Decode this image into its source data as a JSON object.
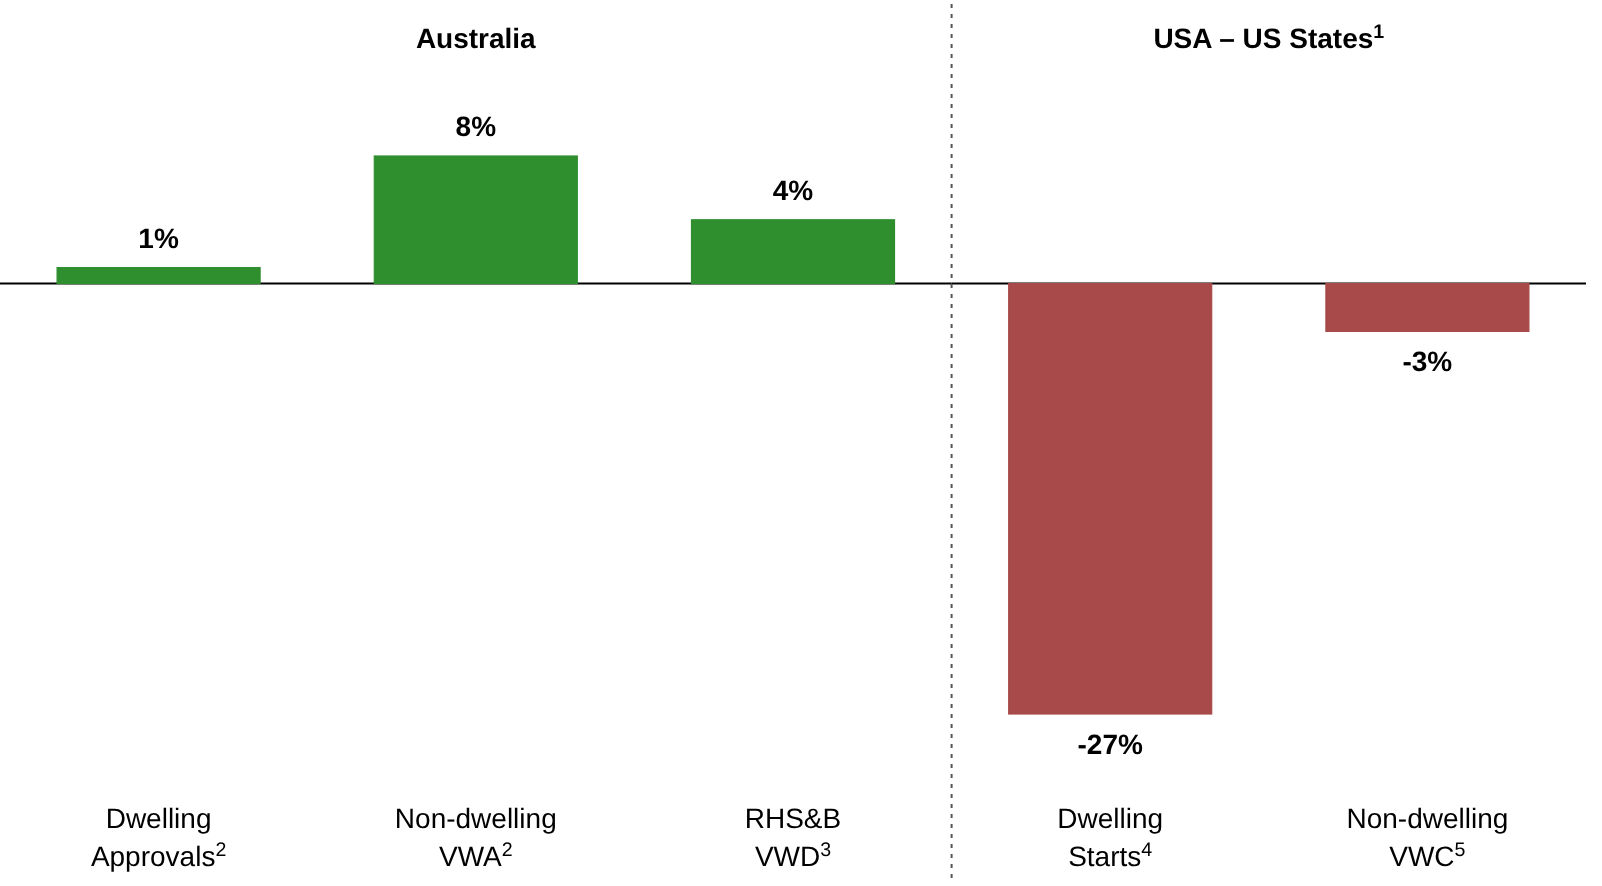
{
  "chart_data": [
    {
      "type": "bar",
      "title": "Australia",
      "categories": [
        "Dwelling Approvals$^{2}$",
        "Non-dwelling VWA$^{2}$",
        "RHS&B VWD$^{3}$"
      ],
      "values": [
        1,
        8,
        4
      ],
      "colors": [
        "#2f8f2f",
        "#2f8f2f",
        "#2f8f2f"
      ],
      "value_labels": [
        "1%",
        "8%",
        "4%"
      ],
      "tick_labels": "x"
    },
    {
      "type": "bar",
      "title": "USA – US States$^{1}$",
      "categories": [
        "Dwelling Starts$^{4}$",
        "Non-dwelling VWC$^{5}$"
      ],
      "values": [
        -27,
        -3
      ],
      "colors": [
        "#a84a4a",
        "#a84a4a"
      ],
      "value_labels": [
        "-27%",
        "-3%"
      ],
      "tick_labels": "x"
    }
  ]
}
